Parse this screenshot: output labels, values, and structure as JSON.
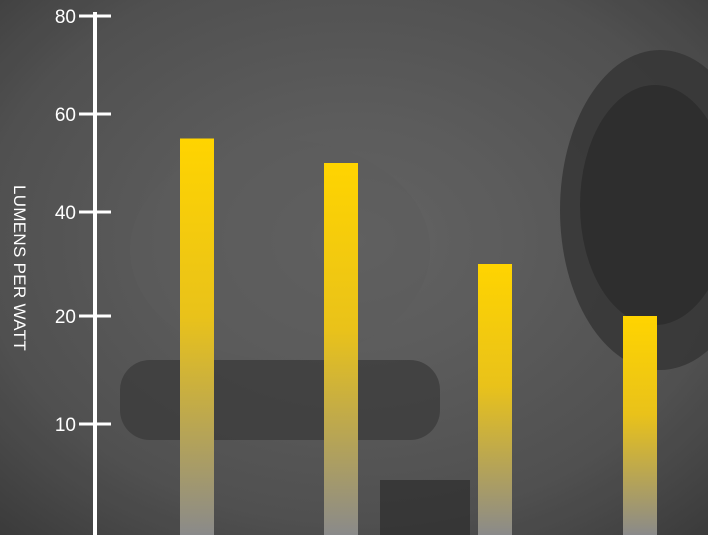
{
  "chart_data": {
    "type": "bar",
    "ylabel": "LUMENS PER WATT",
    "yticks": [
      80,
      60,
      40,
      20,
      10
    ],
    "values": [
      55,
      50,
      30,
      20
    ],
    "bar_color_top": "#FFD400",
    "bar_color_bottom": "#8A8A8A",
    "axis_color": "#FFFFFF",
    "background": "photo-texture-dark-gray"
  }
}
